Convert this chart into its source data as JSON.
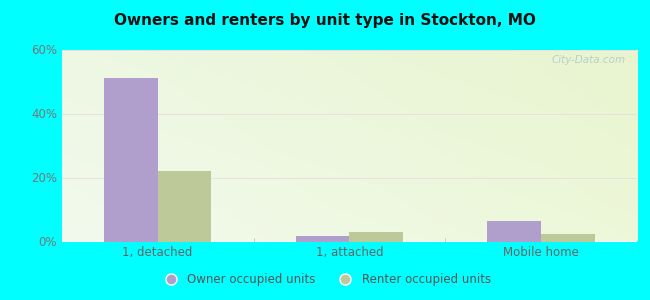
{
  "title": "Owners and renters by unit type in Stockton, MO",
  "categories": [
    "1, detached",
    "1, attached",
    "Mobile home"
  ],
  "owner_values": [
    51,
    1.8,
    6.5
  ],
  "renter_values": [
    22,
    3.0,
    2.2
  ],
  "owner_color": "#b09fcc",
  "renter_color": "#bec99a",
  "ylim": [
    0,
    60
  ],
  "yticks": [
    0,
    20,
    40,
    60
  ],
  "yticklabels": [
    "0%",
    "20%",
    "40%",
    "60%"
  ],
  "outer_bg": "#00ffff",
  "bar_width": 0.28,
  "legend_labels": [
    "Owner occupied units",
    "Renter occupied units"
  ],
  "watermark": "City-Data.com",
  "grid_color": "#e0e8e0",
  "tick_color": "#888888"
}
